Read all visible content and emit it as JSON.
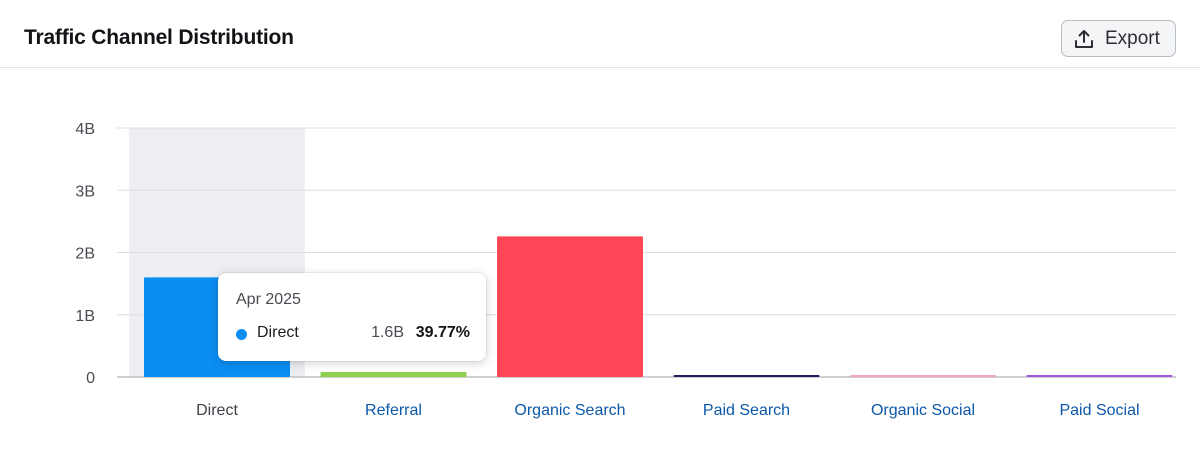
{
  "header": {
    "title": "Traffic Channel Distribution",
    "export_label": "Export"
  },
  "tooltip": {
    "date": "Apr 2025",
    "series": "Direct",
    "value": "1.6B",
    "percent": "39.77%",
    "color": "#0a8ef2"
  },
  "chart_data": {
    "type": "bar",
    "categories": [
      "Direct",
      "Referral",
      "Organic Search",
      "Paid Search",
      "Organic Social",
      "Paid Social"
    ],
    "values": [
      1.6,
      0.08,
      2.26,
      0.03,
      0.03,
      0.03
    ],
    "colors": [
      "#0a8ef2",
      "#8fd14f",
      "#ff4657",
      "#2a1a5e",
      "#f1a7b4",
      "#9a57e0"
    ],
    "yticks": [
      "0",
      "1B",
      "2B",
      "3B",
      "4B"
    ],
    "ylim": [
      0,
      4
    ],
    "unit": "B",
    "highlighted_category": "Direct",
    "grid": true
  }
}
